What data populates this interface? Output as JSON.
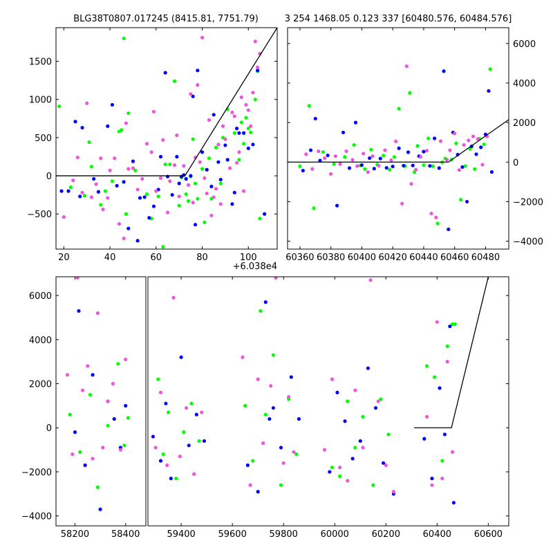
{
  "colors": {
    "background": "#ffffff",
    "axis": "#000000",
    "model_line": "#000000",
    "series": [
      "#00ff00",
      "#0000ff",
      "#ee55dd"
    ]
  },
  "chart_data": [
    {
      "id": "zoom-left",
      "type": "scatter",
      "title": "BLG38T0807.017245 (8415.81, 7751.79)",
      "xlabel": "",
      "ylabel": "",
      "x_offset_label": "+6.038e4",
      "x_tick_labels": [
        "20",
        "40",
        "60",
        "80",
        "100"
      ],
      "y_tick_labels": [
        "−500",
        "0",
        "500",
        "1000",
        "1500"
      ],
      "xlim": [
        16.6,
        112.5
      ],
      "ylim": [
        -960,
        1940
      ],
      "y_axis_side": "left",
      "grid": false,
      "model_line": [
        [
          16.6,
          0
        ],
        [
          72.5,
          0
        ],
        [
          112.5,
          1940
        ]
      ],
      "series": [
        {
          "color_index": 0,
          "x": [
            18,
            23,
            29,
            31,
            32,
            36,
            38,
            41,
            44,
            45,
            46,
            47,
            48,
            51,
            56,
            58,
            61,
            63,
            64,
            66,
            68,
            70,
            71,
            73,
            74,
            75,
            76,
            77,
            78,
            80,
            81,
            83,
            84,
            86,
            88,
            89,
            91,
            94,
            96,
            97,
            98,
            99,
            100,
            101,
            103,
            104,
            105
          ],
          "y": [
            910,
            -150,
            -260,
            440,
            120,
            -380,
            -200,
            -70,
            580,
            600,
            1800,
            -500,
            820,
            70,
            -240,
            -560,
            -270,
            -930,
            150,
            150,
            1240,
            -390,
            -20,
            -240,
            -330,
            -10,
            480,
            -100,
            -300,
            90,
            -610,
            230,
            -300,
            370,
            -100,
            500,
            870,
            560,
            210,
            700,
            420,
            760,
            620,
            570,
            1000,
            1370,
            -560
          ]
        },
        {
          "color_index": 1,
          "x": [
            19,
            22,
            25,
            27,
            28,
            33,
            35,
            39,
            41,
            43,
            46,
            48,
            50,
            52,
            53,
            55,
            57,
            59,
            61,
            62,
            64,
            65,
            67,
            69,
            70,
            71,
            72,
            73,
            75,
            76,
            77,
            78,
            80,
            82,
            84,
            85,
            87,
            88,
            90,
            91,
            93,
            94,
            95,
            96,
            98,
            100,
            102,
            104,
            107
          ],
          "y": [
            -200,
            -200,
            710,
            -270,
            630,
            -40,
            -210,
            650,
            930,
            -130,
            -80,
            -690,
            190,
            -850,
            -290,
            -280,
            -550,
            -400,
            -180,
            250,
            1350,
            -10,
            -250,
            250,
            -100,
            -10,
            10,
            -40,
            0,
            1040,
            -640,
            1380,
            310,
            80,
            -140,
            800,
            180,
            -50,
            400,
            210,
            -370,
            -220,
            620,
            560,
            560,
            360,
            410,
            1380,
            -500
          ]
        },
        {
          "color_index": 2,
          "x": [
            20,
            24,
            26,
            28,
            30,
            32,
            34,
            36,
            37,
            39,
            40,
            42,
            44,
            46,
            47,
            48,
            50,
            52,
            54,
            56,
            58,
            59,
            60,
            62,
            63,
            65,
            66,
            68,
            69,
            70,
            72,
            74,
            75,
            76,
            77,
            78,
            79,
            80,
            81,
            82,
            83,
            84,
            85,
            86,
            87,
            88,
            89,
            90,
            92,
            93,
            94,
            95,
            96,
            97,
            98,
            99,
            100,
            101,
            102,
            103,
            104,
            105
          ],
          "y": [
            -540,
            -60,
            240,
            -220,
            950,
            -280,
            -110,
            230,
            -440,
            -290,
            70,
            230,
            -630,
            -820,
            690,
            90,
            100,
            -180,
            -40,
            420,
            310,
            840,
            -200,
            -30,
            470,
            -480,
            -70,
            140,
            530,
            -270,
            130,
            -120,
            1070,
            -350,
            240,
            1190,
            180,
            1810,
            -30,
            -230,
            730,
            -520,
            -280,
            -170,
            410,
            -370,
            650,
            480,
            100,
            830,
            780,
            170,
            310,
            1030,
            -200,
            930,
            860,
            650,
            1090,
            1760,
            1420,
            1600
          ]
        }
      ]
    },
    {
      "id": "zoom-right",
      "type": "scatter",
      "title": "3 254 1468.05 0.123 337 [60480.576, 60484.576]",
      "xlabel": "",
      "ylabel": "",
      "x_tick_labels": [
        "60360",
        "60380",
        "60400",
        "60420",
        "60440",
        "60460",
        "60480"
      ],
      "y_tick_labels": [
        "−4000",
        "−2000",
        "0",
        "2000",
        "4000",
        "6000"
      ],
      "xlim": [
        60352,
        60495
      ],
      "ylim": [
        -4400,
        6800
      ],
      "y_axis_side": "right",
      "grid": false,
      "model_line": [
        [
          60352,
          0
        ],
        [
          60456,
          0
        ],
        [
          60495,
          2150
        ]
      ],
      "series": [
        {
          "color_index": 0,
          "x": [
            60360,
            60366,
            60369,
            60375,
            60382,
            60389,
            60395,
            60399,
            60402,
            60406,
            60410,
            60414,
            60418,
            60421,
            60424,
            60428,
            60431,
            60434,
            60436,
            60440,
            60443,
            60446,
            60449,
            60452,
            60454,
            60458,
            60461,
            60464,
            60467,
            60470,
            60473,
            60476,
            60479,
            60483
          ],
          "y": [
            -210,
            2850,
            -2330,
            510,
            -100,
            260,
            870,
            -170,
            -350,
            630,
            -130,
            330,
            -380,
            260,
            2700,
            -200,
            3500,
            -500,
            820,
            -150,
            1200,
            -210,
            -3100,
            -10,
            180,
            130,
            950,
            -1900,
            -200,
            670,
            -350,
            1180,
            900,
            4700
          ]
        },
        {
          "color_index": 1,
          "x": [
            60362,
            60367,
            60370,
            60373,
            60378,
            60384,
            60388,
            60392,
            60396,
            60400,
            60405,
            60408,
            60412,
            60416,
            60420,
            60424,
            60427,
            60430,
            60433,
            60437,
            60440,
            60444,
            60447,
            60450,
            60453,
            60456,
            60459,
            60462,
            60465,
            60468,
            60471,
            60474,
            60477,
            60480,
            60482,
            60484
          ],
          "y": [
            -430,
            600,
            2200,
            80,
            340,
            -2200,
            1500,
            -300,
            2000,
            -150,
            200,
            -330,
            180,
            -290,
            -220,
            700,
            -180,
            500,
            -170,
            300,
            530,
            -190,
            1200,
            -300,
            4600,
            -3400,
            1500,
            380,
            -250,
            -2000,
            800,
            400,
            750,
            1400,
            3600,
            -500
          ]
        },
        {
          "color_index": 2,
          "x": [
            60364,
            60368,
            60372,
            60376,
            60380,
            60383,
            60386,
            60390,
            60394,
            60397,
            60401,
            60404,
            60407,
            60411,
            60415,
            60419,
            60422,
            60426,
            60429,
            60432,
            60435,
            60438,
            60442,
            60445,
            60448,
            60451,
            60455,
            60457,
            60460,
            60463,
            60466,
            60469,
            60472,
            60475,
            60478,
            60481
          ],
          "y": [
            400,
            -350,
            550,
            200,
            -600,
            300,
            -100,
            550,
            120,
            -200,
            430,
            -500,
            300,
            -180,
            600,
            100,
            1050,
            -2100,
            4850,
            -1100,
            -380,
            270,
            580,
            -2600,
            -2800,
            1060,
            120,
            600,
            1450,
            -400,
            870,
            1100,
            1300,
            1170,
            -130,
            1300
          ]
        }
      ]
    },
    {
      "id": "full-lightcurve",
      "type": "scatter",
      "title": "",
      "xlabel": "",
      "ylabel": "",
      "x_tick_labels": [
        "58200",
        "58400",
        "59400",
        "59600",
        "59800",
        "60000",
        "60200",
        "60400",
        "60600"
      ],
      "y_tick_labels": [
        "−4000",
        "−2000",
        "0",
        "2000",
        "4000",
        "6000"
      ],
      "y_axis_side": "left",
      "grid": false,
      "segments": [
        {
          "xlim": [
            58125,
            58480
          ]
        },
        {
          "xlim": [
            59270,
            60680
          ]
        }
      ],
      "ylim": [
        -4450,
        6850
      ],
      "model_line": [
        [
          60310,
          0
        ],
        [
          60456,
          0
        ],
        [
          60600,
          6850
        ]
      ],
      "series": [
        {
          "color_index": 0,
          "x": [
            58180,
            58220,
            58260,
            58290,
            58330,
            58370,
            58395,
            58410,
            59310,
            59330,
            59350,
            59380,
            59410,
            59440,
            59470,
            59650,
            59680,
            59710,
            59730,
            59760,
            59790,
            59820,
            59850,
            59990,
            60020,
            60050,
            60080,
            60110,
            60150,
            60180,
            60210,
            60360,
            60390,
            60420,
            60440,
            60460,
            60470
          ],
          "y": [
            600,
            -1100,
            1500,
            -2700,
            100,
            2900,
            -800,
            450,
            2200,
            -1200,
            700,
            -2300,
            -200,
            1100,
            -600,
            1000,
            -1500,
            5300,
            600,
            3300,
            -2600,
            1300,
            -1200,
            -1800,
            -2200,
            1200,
            -900,
            500,
            -2600,
            1300,
            -300,
            2800,
            2300,
            -1500,
            3700,
            4700,
            4700
          ]
        },
        {
          "color_index": 1,
          "x": [
            58200,
            58215,
            58240,
            58270,
            58300,
            58330,
            58355,
            58380,
            58400,
            59290,
            59320,
            59340,
            59360,
            59400,
            59430,
            59460,
            59490,
            59660,
            59700,
            59730,
            59745,
            59760,
            59790,
            59830,
            59860,
            59980,
            60010,
            60040,
            60070,
            60100,
            60130,
            60160,
            60190,
            60230,
            60350,
            60380,
            60410,
            60430,
            60450,
            60465
          ],
          "y": [
            -200,
            5300,
            -1700,
            2400,
            -3700,
            1200,
            400,
            -900,
            1000,
            -400,
            -1500,
            1100,
            -2300,
            3200,
            -800,
            600,
            -600,
            -1700,
            -2900,
            5700,
            400,
            900,
            -900,
            2300,
            400,
            -2000,
            1600,
            300,
            -1400,
            -600,
            2700,
            900,
            -1600,
            -3000,
            -500,
            -2300,
            1800,
            -300,
            4600,
            -3400
          ]
        },
        {
          "color_index": 2,
          "x": [
            58170,
            58190,
            58210,
            58230,
            58250,
            58270,
            58290,
            58310,
            58330,
            58350,
            58380,
            58400,
            59300,
            59320,
            59345,
            59370,
            59395,
            59420,
            59450,
            59480,
            59640,
            59670,
            59700,
            59720,
            59750,
            59770,
            59800,
            59820,
            59840,
            59960,
            59990,
            60020,
            60050,
            60080,
            60110,
            60140,
            60170,
            60200,
            60230,
            60360,
            60380,
            60400,
            60420,
            60440,
            60460
          ],
          "y": [
            2400,
            -1200,
            6800,
            1700,
            2800,
            -1400,
            5200,
            -900,
            1200,
            2000,
            -1000,
            3100,
            -900,
            1600,
            -1700,
            5900,
            -1300,
            900,
            -2100,
            700,
            3200,
            -2600,
            2200,
            -700,
            1900,
            6800,
            -1600,
            1400,
            -1100,
            -1000,
            2200,
            -1800,
            -2400,
            1700,
            -900,
            6700,
            1200,
            -1700,
            -2900,
            500,
            -2600,
            4800,
            -2300,
            3000,
            -1100
          ]
        }
      ]
    }
  ]
}
